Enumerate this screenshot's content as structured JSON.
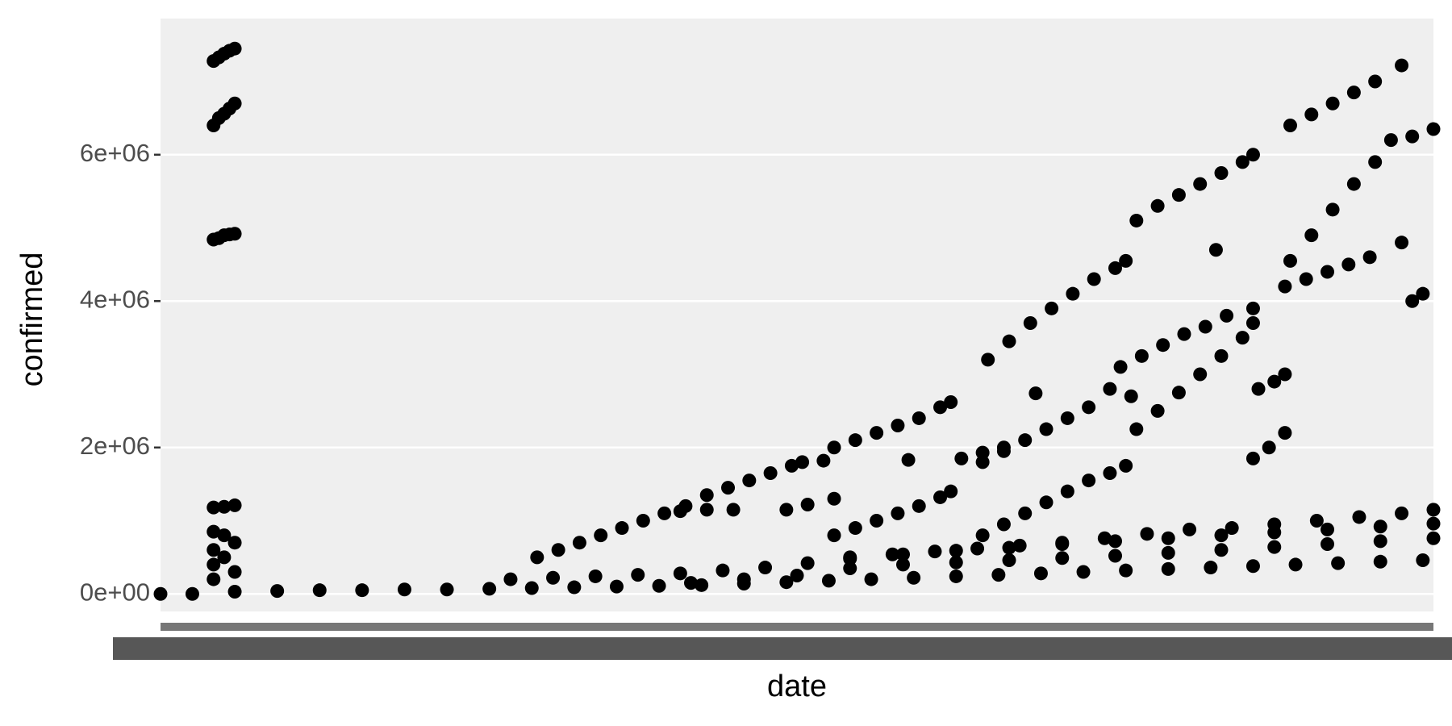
{
  "chart_data": {
    "type": "scatter",
    "x_label": "date",
    "y_label": "confirmed",
    "xlim": [
      0,
      240
    ],
    "ylim": [
      -240000,
      7860000
    ],
    "yticks": [
      {
        "value": 0,
        "label": "0e+00"
      },
      {
        "value": 2000000,
        "label": "2e+06"
      },
      {
        "value": 4000000,
        "label": "4e+06"
      },
      {
        "value": 6000000,
        "label": "6e+06"
      }
    ],
    "grid": true,
    "color": "#000000",
    "series": [
      {
        "x": [
          10,
          11,
          12,
          13,
          14,
          10,
          11,
          12,
          13,
          14,
          10,
          11,
          12,
          13,
          14,
          10,
          12,
          14,
          10,
          10,
          10,
          10,
          12,
          12,
          14,
          14
        ],
        "values": [
          7280000,
          7330000,
          7380000,
          7420000,
          7450000,
          6400000,
          6500000,
          6560000,
          6630000,
          6700000,
          4840000,
          4860000,
          4900000,
          4910000,
          4920000,
          1180000,
          1190000,
          1210000,
          850000,
          600000,
          400000,
          200000,
          800000,
          500000,
          700000,
          300000
        ]
      },
      {
        "x": [
          71,
          75,
          79,
          83,
          87,
          91,
          95,
          99,
          103,
          107,
          111,
          115,
          119,
          121,
          127,
          131,
          135,
          139,
          143,
          147,
          149,
          156,
          160,
          164,
          168,
          172,
          176,
          180,
          182,
          184,
          188,
          192,
          196,
          200,
          204,
          206,
          213,
          217,
          221,
          225,
          229,
          234
        ],
        "values": [
          500000,
          600000,
          700000,
          800000,
          900000,
          1000000,
          1100000,
          1200000,
          1350000,
          1450000,
          1550000,
          1650000,
          1750000,
          1800000,
          2000000,
          2100000,
          2200000,
          2300000,
          2400000,
          2550000,
          2620000,
          3200000,
          3450000,
          3700000,
          3900000,
          4100000,
          4300000,
          4450000,
          4550000,
          5100000,
          5300000,
          5450000,
          5600000,
          5750000,
          5900000,
          6000000,
          6400000,
          6550000,
          6700000,
          6850000,
          7000000,
          7220000
        ]
      },
      {
        "x": [
          98,
          108,
          118,
          122,
          127,
          127,
          131,
          135,
          139,
          143,
          147,
          149,
          151,
          155,
          159,
          155,
          159,
          163,
          167,
          171,
          175,
          179,
          181,
          185,
          189,
          193,
          197,
          201,
          206,
          212,
          216,
          220,
          224,
          228,
          234,
          213,
          217,
          221,
          225,
          229,
          232,
          236,
          240
        ],
        "values": [
          1130000,
          1150000,
          1150000,
          1220000,
          1300000,
          800000,
          900000,
          1000000,
          1100000,
          1200000,
          1320000,
          1400000,
          1850000,
          1930000,
          2000000,
          1800000,
          1950000,
          2100000,
          2250000,
          2400000,
          2550000,
          2800000,
          3100000,
          3250000,
          3400000,
          3550000,
          3650000,
          3800000,
          3900000,
          4200000,
          4300000,
          4400000,
          4500000,
          4600000,
          4800000,
          4550000,
          4900000,
          5250000,
          5600000,
          5900000,
          6200000,
          6250000,
          6350000
        ]
      },
      {
        "x": [
          155,
          159,
          163,
          167,
          171,
          175,
          179,
          182,
          184,
          188,
          192,
          196,
          200,
          204,
          206,
          206,
          209,
          212,
          207,
          210,
          212,
          183,
          165,
          141,
          125,
          103,
          199,
          236,
          238
        ],
        "values": [
          800000,
          950000,
          1100000,
          1250000,
          1400000,
          1550000,
          1650000,
          1750000,
          2250000,
          2500000,
          2750000,
          3000000,
          3250000,
          3500000,
          3700000,
          1850000,
          2000000,
          2200000,
          2800000,
          2900000,
          3000000,
          2700000,
          2740000,
          1830000,
          1820000,
          1150000,
          4700000,
          4000000,
          4100000
        ]
      },
      {
        "x": [
          0,
          6,
          14,
          22,
          30,
          38,
          46,
          54,
          62,
          70,
          78,
          86,
          94,
          102,
          110,
          118,
          126,
          134,
          142,
          150,
          158,
          166,
          174,
          182,
          190,
          198,
          206,
          214,
          222,
          230,
          238,
          66,
          74,
          82,
          90,
          98,
          106,
          114,
          122,
          130,
          138,
          146,
          154,
          162,
          170,
          178,
          186,
          194,
          202,
          210,
          218,
          226,
          234,
          240,
          130,
          140,
          150,
          160,
          170,
          180,
          190,
          200,
          210,
          220,
          230,
          240,
          100,
          110,
          120,
          130,
          140,
          150,
          160,
          170,
          180,
          190,
          200,
          210,
          220,
          230,
          240
        ],
        "values": [
          0,
          0,
          30000,
          40000,
          50000,
          50000,
          60000,
          60000,
          70000,
          80000,
          90000,
          100000,
          110000,
          120000,
          140000,
          160000,
          180000,
          200000,
          220000,
          240000,
          260000,
          280000,
          300000,
          320000,
          340000,
          360000,
          380000,
          400000,
          420000,
          440000,
          460000,
          200000,
          220000,
          240000,
          260000,
          280000,
          320000,
          360000,
          420000,
          480000,
          540000,
          580000,
          620000,
          660000,
          700000,
          760000,
          820000,
          880000,
          900000,
          950000,
          1000000,
          1050000,
          1100000,
          1150000,
          500000,
          540000,
          590000,
          630000,
          680000,
          720000,
          760000,
          800000,
          840000,
          880000,
          920000,
          960000,
          150000,
          200000,
          250000,
          350000,
          400000,
          430000,
          460000,
          490000,
          520000,
          560000,
          600000,
          640000,
          680000,
          720000,
          760000
        ]
      }
    ]
  }
}
